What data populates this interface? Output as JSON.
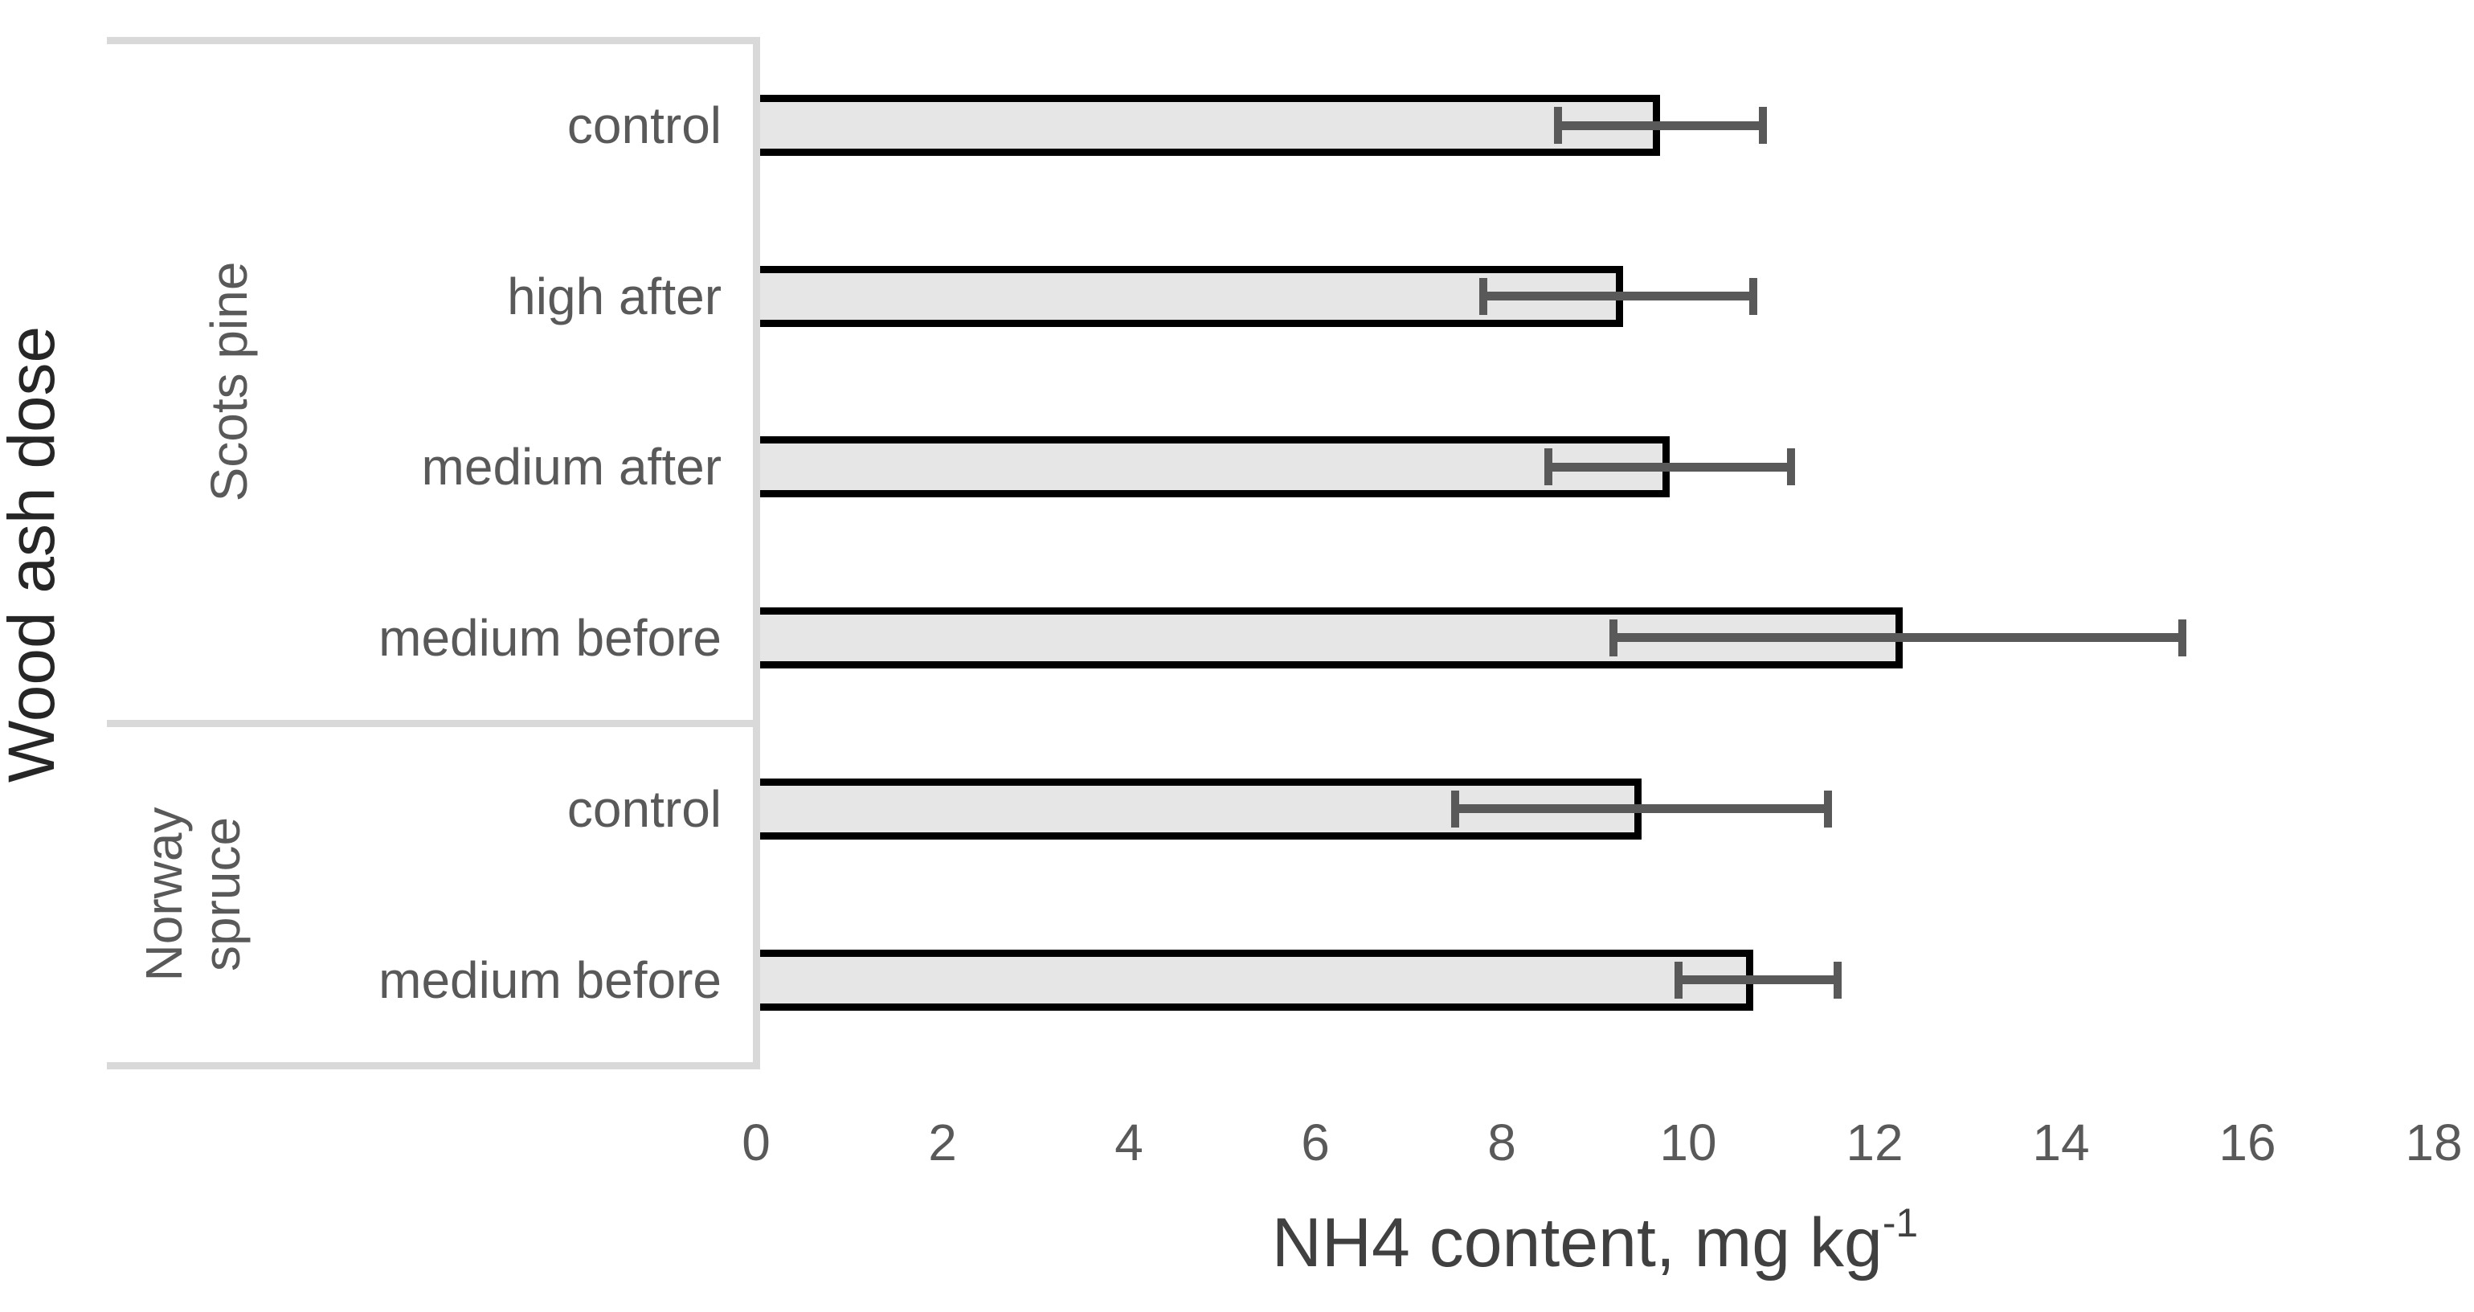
{
  "figure_title": "",
  "y_axis_title": "Wood ash dose",
  "x_axis_title": {
    "text": "NH4 content, mg kg",
    "superscript": "-1"
  },
  "chart_data": {
    "type": "bar",
    "orientation": "horizontal",
    "title": "",
    "xlabel": "NH4 content, mg kg-1",
    "ylabel": "Wood ash dose",
    "xlim": [
      0,
      18
    ],
    "x_ticks": [
      0,
      2,
      4,
      6,
      8,
      10,
      12,
      14,
      16,
      18
    ],
    "grid": false,
    "legend": false,
    "groups": [
      {
        "label": "Scots pine",
        "bars": [
          {
            "category": "control",
            "value": 9.7,
            "error_low": 8.6,
            "error_high": 10.8
          },
          {
            "category": "high after",
            "value": 9.3,
            "error_low": 7.8,
            "error_high": 10.7
          },
          {
            "category": "medium after",
            "value": 9.8,
            "error_low": 8.5,
            "error_high": 11.1
          },
          {
            "category": "medium before",
            "value": 12.3,
            "error_low": 9.2,
            "error_high": 15.3
          }
        ]
      },
      {
        "label": "Norway spruce",
        "bars": [
          {
            "category": "control",
            "value": 9.5,
            "error_low": 7.5,
            "error_high": 11.5
          },
          {
            "category": "medium before",
            "value": 10.7,
            "error_low": 9.9,
            "error_high": 11.6
          }
        ]
      }
    ],
    "colors": {
      "bar_fill": "#e6e6e6",
      "bar_border": "#000000",
      "error_bar": "#595959",
      "axis_line": "#d9d9d9",
      "tick_text": "#595959",
      "category_text": "#595959",
      "x_title_text": "#404040",
      "y_title_text": "#262626"
    }
  }
}
